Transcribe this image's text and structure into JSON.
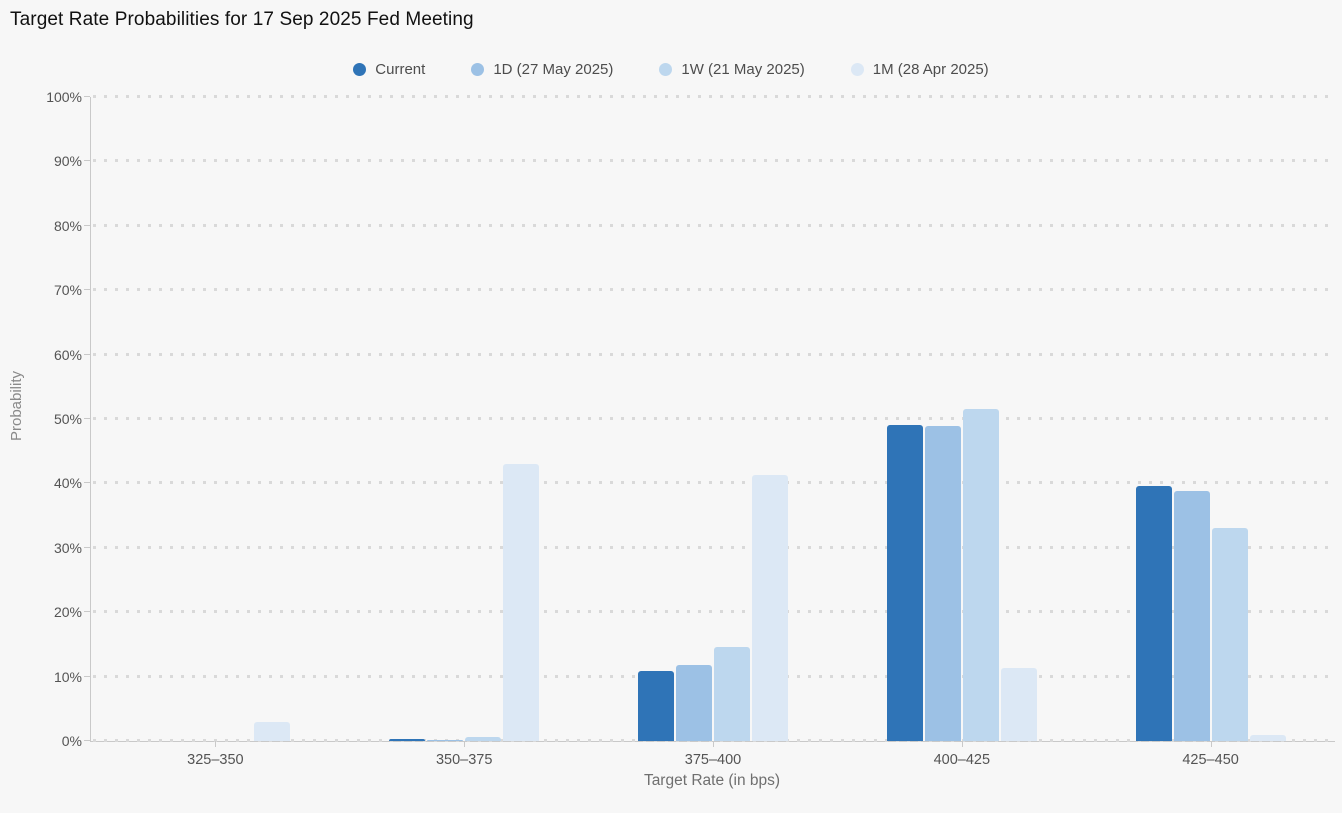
{
  "title": "Target Rate Probabilities for 17 Sep 2025 Fed Meeting",
  "theme": {
    "background": "#f7f7f7",
    "axis_line": "#c9c9c9",
    "grid_dot": "#d9d9d9",
    "title_text": "#111111",
    "legend_text": "#4d4d4d",
    "tick_text": "#545454",
    "axis_title_text": "#6f6f6f"
  },
  "chart_data": {
    "type": "bar",
    "title": "Target Rate Probabilities for 17 Sep 2025 Fed Meeting",
    "categories": [
      "325–350",
      "350–375",
      "375–400",
      "400–425",
      "425–450"
    ],
    "series": [
      {
        "name": "Current",
        "color": "#2F74B7",
        "values": [
          0,
          0.3,
          10.9,
          49.0,
          39.6
        ]
      },
      {
        "name": "1D (27 May 2025)",
        "color": "#9CC1E5",
        "values": [
          0,
          0.2,
          11.8,
          48.9,
          38.8
        ]
      },
      {
        "name": "1W (21 May 2025)",
        "color": "#BDD7EE",
        "values": [
          0,
          0.6,
          14.6,
          51.5,
          33.1
        ]
      },
      {
        "name": "1M (28 Apr 2025)",
        "color": "#DCE8F5",
        "values": [
          2.9,
          43.0,
          41.3,
          11.3,
          0.9
        ]
      }
    ],
    "xlabel": "Target Rate (in bps)",
    "ylabel": "Probability",
    "ylim": [
      0,
      100
    ],
    "ytick_step": 10,
    "yticks": [
      "0%",
      "10%",
      "20%",
      "30%",
      "40%",
      "50%",
      "60%",
      "70%",
      "80%",
      "90%",
      "100%"
    ],
    "legend_position": "top",
    "grid": "dotted-horizontal"
  }
}
